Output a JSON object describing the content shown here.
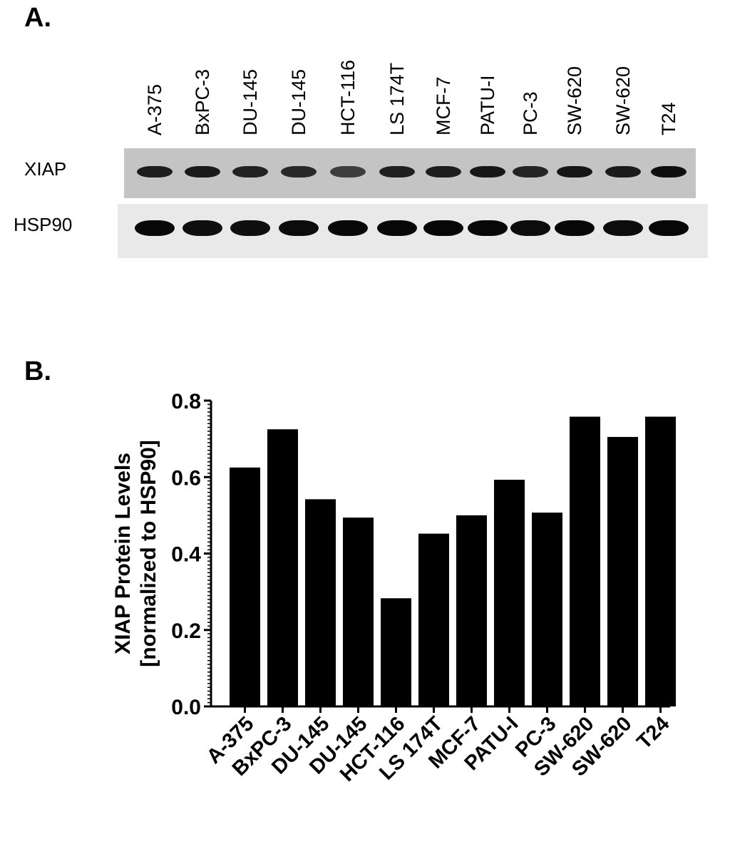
{
  "panel_labels": {
    "a": "A.",
    "b": "B."
  },
  "blot": {
    "lanes": [
      "A-375",
      "BxPC-3",
      "DU-145",
      "DU-145",
      "HCT-116",
      "LS 174T",
      "MCF-7",
      "PATU-I",
      "PC-3",
      "SW-620",
      "SW-620",
      "T24"
    ],
    "rows": [
      {
        "label": "XIAP",
        "band_intensity": [
          0.8,
          0.82,
          0.76,
          0.72,
          0.55,
          0.78,
          0.8,
          0.85,
          0.75,
          0.85,
          0.82,
          0.9
        ]
      },
      {
        "label": "HSP90",
        "band_intensity": [
          0.95,
          0.92,
          0.92,
          0.93,
          0.95,
          0.95,
          0.96,
          0.96,
          0.93,
          0.95,
          0.93,
          0.96
        ]
      }
    ]
  },
  "chart_data": {
    "type": "bar",
    "categories": [
      "A-375",
      "BxPC-3",
      "DU-145",
      "DU-145",
      "HCT-116",
      "LS 174T",
      "MCF-7",
      "PATU-I",
      "PC-3",
      "SW-620",
      "SW-620",
      "T24"
    ],
    "values": [
      0.625,
      0.725,
      0.542,
      0.494,
      0.283,
      0.452,
      0.5,
      0.593,
      0.507,
      0.758,
      0.705,
      0.758
    ],
    "ylabel_line1": "XIAP Protein Levels",
    "ylabel_line2": "[normalized to HSP90]",
    "ylim": [
      0,
      0.8
    ],
    "yticks": [
      "0.0",
      "0.2",
      "0.4",
      "0.6",
      "0.8"
    ],
    "grid": false,
    "bar_color": "#000000"
  }
}
